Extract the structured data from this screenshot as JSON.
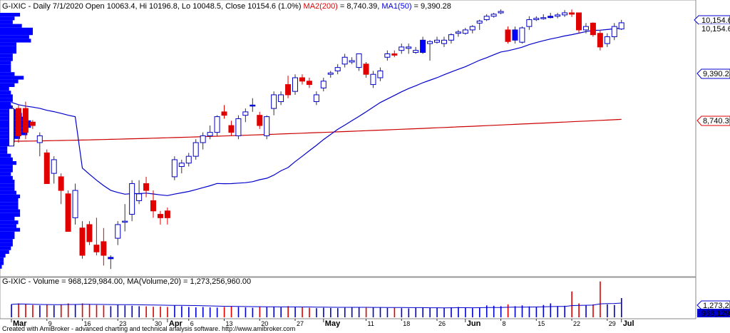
{
  "price_panel": {
    "header_segments": [
      {
        "text": "G-IXIC - Daily 7/1/2020 Open 10063.4, Hi 10196.8, Lo 10048.5, Close 10154.6 (1.0%) ",
        "color": "#000000"
      },
      {
        "text": "MA2(200)",
        "color": "#e00000"
      },
      {
        "text": " = 8,740.39, ",
        "color": "#000000"
      },
      {
        "text": "MA1(50)",
        "color": "#0000e0"
      },
      {
        "text": " = 9,390.28",
        "color": "#000000"
      }
    ],
    "labels": {
      "last_price": "10,154.6",
      "close": "10,154.6",
      "ma50": "9,390.28",
      "ma200": "8,740.39"
    }
  },
  "volume_panel": {
    "header_segments": [
      {
        "text": "G-IXIC - Volume = 968,129,984.00, MA(Volume,20) = 1,273,256,960.00",
        "color": "#000000"
      }
    ],
    "labels": {
      "ma": "1,273,256,960",
      "last": "968,129,984"
    }
  },
  "x_axis": {
    "ticks": [
      {
        "label": "Mar",
        "index": 0,
        "month": true
      },
      {
        "label": "9",
        "index": 5
      },
      {
        "label": "16",
        "index": 10
      },
      {
        "label": "23",
        "index": 15
      },
      {
        "label": "30",
        "index": 20
      },
      {
        "label": "Apr",
        "index": 22,
        "month": true
      },
      {
        "label": "6",
        "index": 25
      },
      {
        "label": "13",
        "index": 30
      },
      {
        "label": "20",
        "index": 35
      },
      {
        "label": "27",
        "index": 40
      },
      {
        "label": "May",
        "index": 44,
        "month": true
      },
      {
        "label": "11",
        "index": 50
      },
      {
        "label": "18",
        "index": 55
      },
      {
        "label": "26",
        "index": 60
      },
      {
        "label": "Jun",
        "index": 64,
        "month": true
      },
      {
        "label": "8",
        "index": 69
      },
      {
        "label": "15",
        "index": 74
      },
      {
        "label": "22",
        "index": 79
      },
      {
        "label": "29",
        "index": 84
      },
      {
        "label": "Jul",
        "index": 86,
        "month": true
      }
    ]
  },
  "footer": "Created with AmiBroker - advanced charting and technical analysis software. http://www.amibroker.com",
  "colors": {
    "up_body": "#ffffff",
    "up_stroke": "#0000c8",
    "down": "#e00000",
    "strong_up": "#0000ff",
    "ma50": "#0000cc",
    "ma200": "#cc0000",
    "profile": "#0000ff",
    "volume_up": "#0000cc",
    "volume_down": "#e00000"
  },
  "chart_data": {
    "type": "candlestick",
    "title": "G-IXIC - Daily 7/1/2020",
    "ylim": [
      6500,
      10300
    ],
    "series": [
      {
        "name": "MA2(200)",
        "last": 8740.39
      },
      {
        "name": "MA1(50)",
        "last": 9390.28
      }
    ],
    "candles": [
      {
        "o": 8350,
        "h": 8950,
        "l": 8350,
        "c": 8900,
        "v": 650,
        "k": "u"
      },
      {
        "o": 8900,
        "h": 8950,
        "l": 8400,
        "c": 8500,
        "v": 700,
        "k": "d"
      },
      {
        "o": 8900,
        "h": 9000,
        "l": 8450,
        "c": 8550,
        "v": 650,
        "k": "d"
      },
      {
        "o": 8700,
        "h": 8730,
        "l": 8600,
        "c": 8650,
        "v": 620,
        "k": "d"
      },
      {
        "o": 8400,
        "h": 8550,
        "l": 8200,
        "c": 8500,
        "v": 600,
        "k": "u"
      },
      {
        "o": 8250,
        "h": 8300,
        "l": 7800,
        "c": 7800,
        "v": 640,
        "k": "d"
      },
      {
        "o": 7950,
        "h": 8200,
        "l": 7800,
        "c": 8150,
        "v": 600,
        "k": "u"
      },
      {
        "o": 7900,
        "h": 7950,
        "l": 7500,
        "c": 7700,
        "v": 650,
        "k": "d"
      },
      {
        "o": 7650,
        "h": 7700,
        "l": 7100,
        "c": 7100,
        "v": 700,
        "k": "d"
      },
      {
        "o": 7300,
        "h": 7800,
        "l": 7200,
        "c": 7700,
        "v": 660,
        "k": "u"
      },
      {
        "o": 7150,
        "h": 7250,
        "l": 6700,
        "c": 6750,
        "v": 700,
        "k": "d"
      },
      {
        "o": 7200,
        "h": 7250,
        "l": 6900,
        "c": 6950,
        "v": 650,
        "k": "d"
      },
      {
        "o": 6900,
        "h": 7300,
        "l": 6750,
        "c": 6800,
        "v": 620,
        "k": "d"
      },
      {
        "o": 6950,
        "h": 7150,
        "l": 6600,
        "c": 6750,
        "v": 600,
        "k": "d"
      },
      {
        "o": 6700,
        "h": 6750,
        "l": 6550,
        "c": 6720,
        "v": 560,
        "k": "p"
      },
      {
        "o": 7000,
        "h": 7250,
        "l": 6900,
        "c": 7200,
        "v": 620,
        "k": "u"
      },
      {
        "o": 7250,
        "h": 7500,
        "l": 7100,
        "c": 7250,
        "v": 600,
        "k": "u"
      },
      {
        "o": 7350,
        "h": 7850,
        "l": 7250,
        "c": 7800,
        "v": 580,
        "k": "u"
      },
      {
        "o": 7550,
        "h": 7850,
        "l": 7500,
        "c": 7650,
        "v": 560,
        "k": "u"
      },
      {
        "o": 7700,
        "h": 7900,
        "l": 7600,
        "c": 7800,
        "v": 550,
        "k": "d"
      },
      {
        "o": 7550,
        "h": 7700,
        "l": 7300,
        "c": 7400,
        "v": 530,
        "k": "d"
      },
      {
        "o": 7300,
        "h": 7400,
        "l": 7200,
        "c": 7350,
        "v": 540,
        "k": "d"
      },
      {
        "o": 7300,
        "h": 7450,
        "l": 7200,
        "c": 7400,
        "v": 520,
        "k": "d"
      },
      {
        "o": 7900,
        "h": 8200,
        "l": 7850,
        "c": 8150,
        "v": 600,
        "k": "u"
      },
      {
        "o": 8050,
        "h": 8150,
        "l": 7950,
        "c": 8100,
        "v": 560,
        "k": "u"
      },
      {
        "o": 8100,
        "h": 8250,
        "l": 8050,
        "c": 8200,
        "v": 520,
        "k": "u"
      },
      {
        "o": 8200,
        "h": 8450,
        "l": 8150,
        "c": 8400,
        "v": 500,
        "k": "u"
      },
      {
        "o": 8400,
        "h": 8550,
        "l": 8300,
        "c": 8500,
        "v": 520,
        "k": "u"
      },
      {
        "o": 8500,
        "h": 8650,
        "l": 8450,
        "c": 8550,
        "v": 500,
        "k": "u"
      },
      {
        "o": 8550,
        "h": 8800,
        "l": 8500,
        "c": 8780,
        "v": 490,
        "k": "u"
      },
      {
        "o": 8850,
        "h": 8950,
        "l": 8750,
        "c": 8800,
        "v": 520,
        "k": "d"
      },
      {
        "o": 8650,
        "h": 8720,
        "l": 8500,
        "c": 8550,
        "v": 540,
        "k": "d"
      },
      {
        "o": 8500,
        "h": 8800,
        "l": 8450,
        "c": 8750,
        "v": 520,
        "k": "u"
      },
      {
        "o": 8800,
        "h": 8900,
        "l": 8700,
        "c": 8850,
        "v": 500,
        "k": "u"
      },
      {
        "o": 8950,
        "h": 9050,
        "l": 8850,
        "c": 8950,
        "v": 480,
        "k": "p"
      },
      {
        "o": 8800,
        "h": 8850,
        "l": 8600,
        "c": 8650,
        "v": 530,
        "k": "d"
      },
      {
        "o": 8500,
        "h": 8800,
        "l": 8450,
        "c": 8780,
        "v": 510,
        "k": "u"
      },
      {
        "o": 8900,
        "h": 9150,
        "l": 8800,
        "c": 9100,
        "v": 520,
        "k": "u"
      },
      {
        "o": 9100,
        "h": 9150,
        "l": 8950,
        "c": 9000,
        "v": 500,
        "k": "u"
      },
      {
        "o": 9250,
        "h": 9380,
        "l": 9050,
        "c": 9100,
        "v": 560,
        "k": "d"
      },
      {
        "o": 9150,
        "h": 9400,
        "l": 9100,
        "c": 9350,
        "v": 520,
        "k": "u"
      },
      {
        "o": 9350,
        "h": 9400,
        "l": 9250,
        "c": 9300,
        "v": 500,
        "k": "d"
      },
      {
        "o": 9300,
        "h": 9350,
        "l": 9200,
        "c": 9250,
        "v": 480,
        "k": "d"
      },
      {
        "o": 9000,
        "h": 9150,
        "l": 8950,
        "c": 9100,
        "v": 460,
        "k": "u"
      },
      {
        "o": 9200,
        "h": 9350,
        "l": 9150,
        "c": 9300,
        "v": 480,
        "k": "u"
      },
      {
        "o": 9400,
        "h": 9450,
        "l": 9350,
        "c": 9420,
        "v": 470,
        "k": "u"
      },
      {
        "o": 9450,
        "h": 9550,
        "l": 9400,
        "c": 9500,
        "v": 460,
        "k": "u"
      },
      {
        "o": 9550,
        "h": 9700,
        "l": 9500,
        "c": 9650,
        "v": 480,
        "k": "u"
      },
      {
        "o": 9600,
        "h": 9650,
        "l": 9550,
        "c": 9580,
        "v": 500,
        "k": "u"
      },
      {
        "o": 9500,
        "h": 9700,
        "l": 9450,
        "c": 9700,
        "v": 520,
        "k": "u"
      },
      {
        "o": 9550,
        "h": 9580,
        "l": 9350,
        "c": 9400,
        "v": 480,
        "k": "d"
      },
      {
        "o": 9250,
        "h": 9450,
        "l": 9200,
        "c": 9400,
        "v": 500,
        "k": "u"
      },
      {
        "o": 9350,
        "h": 9500,
        "l": 9300,
        "c": 9450,
        "v": 490,
        "k": "u"
      },
      {
        "o": 9650,
        "h": 9750,
        "l": 9600,
        "c": 9700,
        "v": 470,
        "k": "u"
      },
      {
        "o": 9700,
        "h": 9750,
        "l": 9650,
        "c": 9680,
        "v": 480,
        "k": "d"
      },
      {
        "o": 9750,
        "h": 9850,
        "l": 9700,
        "c": 9800,
        "v": 460,
        "k": "u"
      },
      {
        "o": 9780,
        "h": 9850,
        "l": 9700,
        "c": 9800,
        "v": 450,
        "k": "u"
      },
      {
        "o": 9750,
        "h": 9800,
        "l": 9700,
        "c": 9720,
        "v": 480,
        "k": "u"
      },
      {
        "o": 9720,
        "h": 9950,
        "l": 9700,
        "c": 9900,
        "v": 490,
        "k": "p"
      },
      {
        "o": 9850,
        "h": 9900,
        "l": 9600,
        "c": 9880,
        "v": 470,
        "k": "u"
      },
      {
        "o": 9870,
        "h": 9950,
        "l": 9850,
        "c": 9900,
        "v": 480,
        "k": "u"
      },
      {
        "o": 9900,
        "h": 9950,
        "l": 9800,
        "c": 9850,
        "v": 470,
        "k": "u"
      },
      {
        "o": 9900,
        "h": 10000,
        "l": 9850,
        "c": 9980,
        "v": 500,
        "k": "u"
      },
      {
        "o": 10000,
        "h": 10050,
        "l": 9950,
        "c": 10020,
        "v": 520,
        "k": "u"
      },
      {
        "o": 10000,
        "h": 10080,
        "l": 9980,
        "c": 10050,
        "v": 480,
        "k": "u"
      },
      {
        "o": 10050,
        "h": 10120,
        "l": 10000,
        "c": 10100,
        "v": 460,
        "k": "u"
      },
      {
        "o": 10150,
        "h": 10200,
        "l": 10050,
        "c": 10180,
        "v": 500,
        "k": "u"
      },
      {
        "o": 10200,
        "h": 10280,
        "l": 10180,
        "c": 10250,
        "v": 600,
        "k": "u"
      },
      {
        "o": 10250,
        "h": 10300,
        "l": 10230,
        "c": 10280,
        "v": 580,
        "k": "u"
      },
      {
        "o": 10300,
        "h": 10350,
        "l": 10280,
        "c": 10320,
        "v": 560,
        "k": "u"
      },
      {
        "o": 10050,
        "h": 10100,
        "l": 9850,
        "c": 9880,
        "v": 650,
        "k": "d"
      },
      {
        "o": 9900,
        "h": 10100,
        "l": 9850,
        "c": 10050,
        "v": 560,
        "k": "p"
      },
      {
        "o": 9870,
        "h": 10100,
        "l": 9850,
        "c": 10080,
        "v": 600,
        "k": "u"
      },
      {
        "o": 10100,
        "h": 10250,
        "l": 10050,
        "c": 10200,
        "v": 550,
        "k": "u"
      },
      {
        "o": 10200,
        "h": 10250,
        "l": 10180,
        "c": 10220,
        "v": 520,
        "k": "u"
      },
      {
        "o": 10220,
        "h": 10280,
        "l": 10200,
        "c": 10230,
        "v": 620,
        "k": "u"
      },
      {
        "o": 10230,
        "h": 10300,
        "l": 10220,
        "c": 10250,
        "v": 700,
        "k": "p"
      },
      {
        "o": 10250,
        "h": 10300,
        "l": 10220,
        "c": 10270,
        "v": 560,
        "k": "u"
      },
      {
        "o": 10270,
        "h": 10340,
        "l": 10240,
        "c": 10300,
        "v": 580,
        "k": "u"
      },
      {
        "o": 10300,
        "h": 10350,
        "l": 10240,
        "c": 10280,
        "v": 1300,
        "k": "d"
      },
      {
        "o": 10300,
        "h": 10300,
        "l": 10000,
        "c": 10050,
        "v": 700,
        "k": "d"
      },
      {
        "o": 10050,
        "h": 10150,
        "l": 10000,
        "c": 10100,
        "v": 600,
        "k": "u"
      },
      {
        "o": 10150,
        "h": 10160,
        "l": 9950,
        "c": 9980,
        "v": 650,
        "k": "d"
      },
      {
        "o": 10000,
        "h": 10050,
        "l": 9750,
        "c": 9800,
        "v": 1800,
        "k": "d"
      },
      {
        "o": 9850,
        "h": 10000,
        "l": 9800,
        "c": 9950,
        "v": 650,
        "k": "u"
      },
      {
        "o": 9950,
        "h": 10150,
        "l": 9900,
        "c": 10100,
        "v": 620,
        "k": "u"
      },
      {
        "o": 10063.4,
        "h": 10196.8,
        "l": 10048.5,
        "c": 10154.6,
        "v": 968,
        "k": "u"
      }
    ]
  }
}
